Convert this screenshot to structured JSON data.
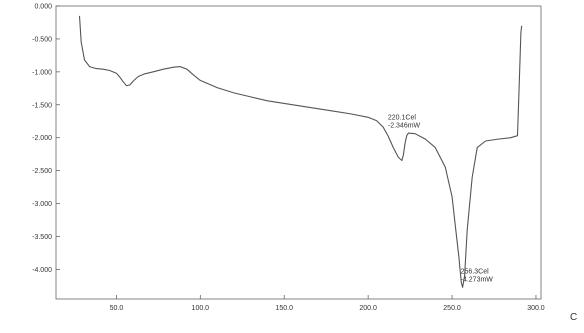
{
  "chart_data": {
    "type": "line",
    "title": "",
    "xlabel": "",
    "ylabel": "",
    "xlim": [
      14,
      303
    ],
    "ylim": [
      -4.45,
      0.0
    ],
    "x_ticks": [
      50,
      100,
      150,
      200,
      250,
      300
    ],
    "x_tick_labels": [
      "50.0",
      "100.0",
      "150.0",
      "200.0",
      "250.0",
      "300.0"
    ],
    "y_ticks": [
      0,
      -0.5,
      -1,
      -1.5,
      -2,
      -2.5,
      -3,
      -3.5,
      -4
    ],
    "y_tick_labels": [
      "0.000",
      "-0.500",
      "-1.000",
      "-1.500",
      "-2.000",
      "-2.500",
      "-3.000",
      "-3.500",
      "-4.000"
    ],
    "grid": false,
    "series": [
      {
        "color": "#555555",
        "points": [
          [
            28,
            -0.15
          ],
          [
            29,
            -0.55
          ],
          [
            31,
            -0.82
          ],
          [
            34,
            -0.92
          ],
          [
            38,
            -0.95
          ],
          [
            42,
            -0.96
          ],
          [
            46,
            -0.98
          ],
          [
            50,
            -1.02
          ],
          [
            52,
            -1.08
          ],
          [
            54,
            -1.15
          ],
          [
            56,
            -1.21
          ],
          [
            58,
            -1.2
          ],
          [
            60,
            -1.14
          ],
          [
            63,
            -1.07
          ],
          [
            67,
            -1.03
          ],
          [
            72,
            -1.0
          ],
          [
            78,
            -0.96
          ],
          [
            84,
            -0.93
          ],
          [
            88,
            -0.92
          ],
          [
            92,
            -0.96
          ],
          [
            96,
            -1.05
          ],
          [
            100,
            -1.13
          ],
          [
            110,
            -1.24
          ],
          [
            120,
            -1.32
          ],
          [
            130,
            -1.38
          ],
          [
            140,
            -1.44
          ],
          [
            150,
            -1.48
          ],
          [
            160,
            -1.52
          ],
          [
            170,
            -1.56
          ],
          [
            180,
            -1.6
          ],
          [
            190,
            -1.64
          ],
          [
            200,
            -1.69
          ],
          [
            205,
            -1.74
          ],
          [
            209,
            -1.84
          ],
          [
            212,
            -1.98
          ],
          [
            215,
            -2.15
          ],
          [
            218,
            -2.3
          ],
          [
            220.1,
            -2.346
          ],
          [
            221,
            -2.26
          ],
          [
            222,
            -2.08
          ],
          [
            223,
            -1.97
          ],
          [
            224,
            -1.93
          ],
          [
            228,
            -1.94
          ],
          [
            234,
            -2.02
          ],
          [
            240,
            -2.15
          ],
          [
            246,
            -2.45
          ],
          [
            250,
            -2.9
          ],
          [
            252,
            -3.35
          ],
          [
            254,
            -3.8
          ],
          [
            255.5,
            -4.2
          ],
          [
            256.3,
            -4.273
          ],
          [
            257.5,
            -4.1
          ],
          [
            259,
            -3.4
          ],
          [
            262,
            -2.6
          ],
          [
            265,
            -2.15
          ],
          [
            270,
            -2.05
          ],
          [
            278,
            -2.02
          ],
          [
            285,
            -2.0
          ],
          [
            289,
            -1.97
          ],
          [
            290,
            -1.2
          ],
          [
            291,
            -0.4
          ],
          [
            291.5,
            -0.3
          ]
        ]
      }
    ],
    "annotations": [
      {
        "lines": [
          "220.1Cel",
          "-2.346mW"
        ],
        "x": 220.1,
        "y": -2.346
      },
      {
        "lines": [
          "256.3Cel",
          "-4.273mW"
        ],
        "x": 256.3,
        "y": -4.273
      }
    ]
  },
  "corner_text": "C"
}
